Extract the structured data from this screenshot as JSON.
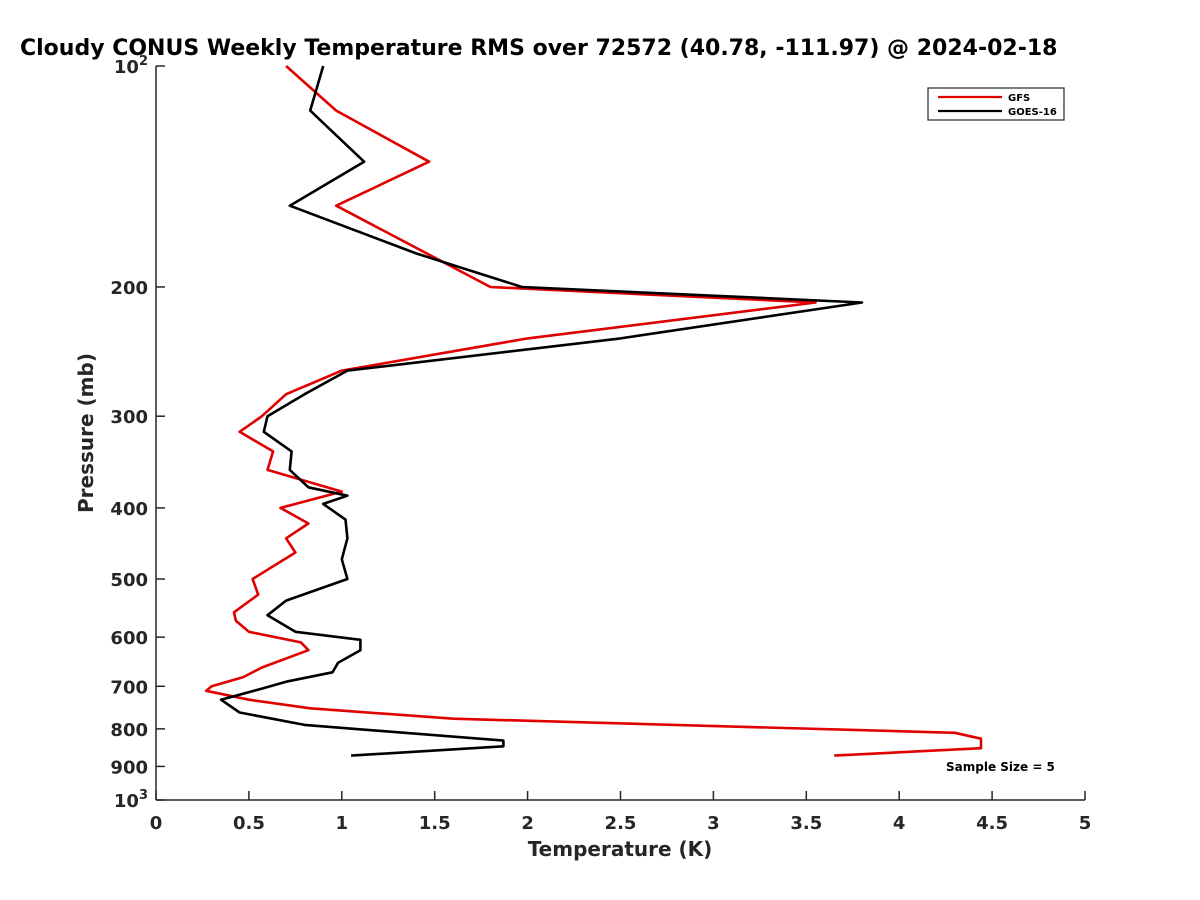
{
  "chart_data": {
    "type": "line",
    "title": "Cloudy CONUS Weekly Temperature RMS over 72572 (40.78, -111.97) @ 2024-02-18",
    "xlabel": "Temperature (K)",
    "ylabel": "Pressure (mb)",
    "xlim": [
      0,
      5
    ],
    "ylim": [
      100,
      1000
    ],
    "y_scale": "log",
    "y_reversed": true,
    "grid": false,
    "legend_position": "top-right",
    "x_ticks": [
      "0",
      "0.5",
      "1",
      "1.5",
      "2",
      "2.5",
      "3",
      "3.5",
      "4",
      "4.5",
      "5"
    ],
    "y_ticks": [
      {
        "value": 100,
        "base": "10",
        "exp": "2"
      },
      {
        "value": 200,
        "label": "200"
      },
      {
        "value": 300,
        "label": "300"
      },
      {
        "value": 400,
        "label": "400"
      },
      {
        "value": 500,
        "label": "500"
      },
      {
        "value": 600,
        "label": "600"
      },
      {
        "value": 700,
        "label": "700"
      },
      {
        "value": 800,
        "label": "800"
      },
      {
        "value": 900,
        "label": "900"
      },
      {
        "value": 1000,
        "base": "10",
        "exp": "3"
      }
    ],
    "series": [
      {
        "name": "GFS",
        "color": "#e00000",
        "points": [
          [
            0.7,
            100
          ],
          [
            0.97,
            115
          ],
          [
            1.47,
            135
          ],
          [
            0.97,
            155
          ],
          [
            1.8,
            200
          ],
          [
            3.55,
            210
          ],
          [
            2.0,
            235
          ],
          [
            1.0,
            260
          ],
          [
            0.7,
            280
          ],
          [
            0.57,
            300
          ],
          [
            0.45,
            315
          ],
          [
            0.63,
            335
          ],
          [
            0.6,
            355
          ],
          [
            1.0,
            380
          ],
          [
            0.67,
            400
          ],
          [
            0.82,
            420
          ],
          [
            0.7,
            440
          ],
          [
            0.75,
            460
          ],
          [
            0.52,
            500
          ],
          [
            0.55,
            525
          ],
          [
            0.42,
            555
          ],
          [
            0.43,
            570
          ],
          [
            0.5,
            590
          ],
          [
            0.78,
            610
          ],
          [
            0.82,
            625
          ],
          [
            0.57,
            660
          ],
          [
            0.47,
            680
          ],
          [
            0.3,
            700
          ],
          [
            0.27,
            710
          ],
          [
            0.5,
            730
          ],
          [
            0.83,
            750
          ],
          [
            1.6,
            775
          ],
          [
            4.3,
            810
          ],
          [
            4.44,
            825
          ],
          [
            4.44,
            850
          ],
          [
            3.65,
            870
          ]
        ]
      },
      {
        "name": "GOES-16",
        "color": "#000000",
        "points": [
          [
            0.9,
            100
          ],
          [
            0.83,
            115
          ],
          [
            1.12,
            135
          ],
          [
            0.72,
            155
          ],
          [
            1.4,
            180
          ],
          [
            1.97,
            200
          ],
          [
            3.8,
            210
          ],
          [
            2.5,
            235
          ],
          [
            1.03,
            260
          ],
          [
            0.8,
            280
          ],
          [
            0.6,
            300
          ],
          [
            0.58,
            315
          ],
          [
            0.73,
            335
          ],
          [
            0.72,
            355
          ],
          [
            0.82,
            375
          ],
          [
            1.03,
            385
          ],
          [
            0.9,
            395
          ],
          [
            1.02,
            415
          ],
          [
            1.03,
            440
          ],
          [
            1.0,
            470
          ],
          [
            1.03,
            500
          ],
          [
            0.7,
            535
          ],
          [
            0.6,
            560
          ],
          [
            0.75,
            590
          ],
          [
            1.1,
            605
          ],
          [
            1.1,
            625
          ],
          [
            0.98,
            650
          ],
          [
            0.95,
            670
          ],
          [
            0.7,
            690
          ],
          [
            0.57,
            705
          ],
          [
            0.35,
            730
          ],
          [
            0.45,
            760
          ],
          [
            0.8,
            790
          ],
          [
            1.87,
            830
          ],
          [
            1.87,
            845
          ],
          [
            1.05,
            870
          ]
        ]
      }
    ],
    "annotation": "Sample Size = 5"
  }
}
